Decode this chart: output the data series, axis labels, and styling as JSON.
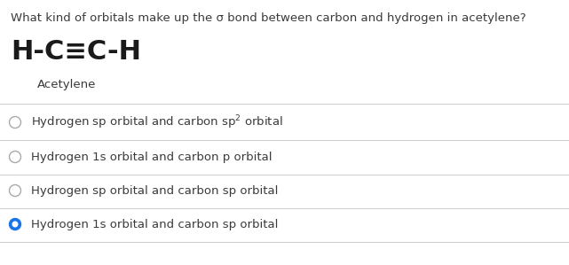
{
  "question": "What kind of orbitals make up the σ bond between carbon and hydrogen in acetylene?",
  "formula_line1": "H-C≡C-H",
  "formula_label": "Acetylene",
  "options": [
    {
      "text": "Hydrogen sp orbital and carbon sp$^2$ orbital",
      "selected": false
    },
    {
      "text": "Hydrogen 1s orbital and carbon p orbital",
      "selected": false
    },
    {
      "text": "Hydrogen sp orbital and carbon sp orbital",
      "selected": false
    },
    {
      "text": "Hydrogen 1s orbital and carbon sp orbital",
      "selected": true
    }
  ],
  "bg_color": "#ffffff",
  "text_color": "#3a3a3a",
  "formula_color": "#1a1a1a",
  "divider_color": "#d0d0d0",
  "selected_circle_color": "#1a73e8",
  "unselected_circle_color": "#aaaaaa",
  "question_fontsize": 9.5,
  "formula_fontsize": 22,
  "label_fontsize": 9.5,
  "option_fontsize": 9.5
}
